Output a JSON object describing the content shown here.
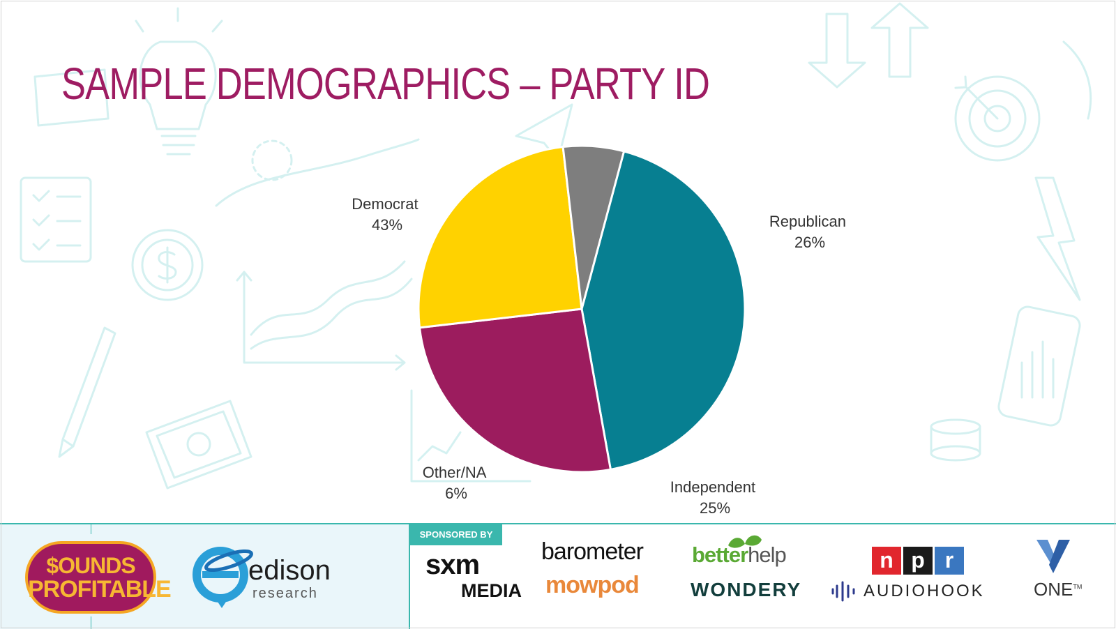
{
  "title": "SAMPLE DEMOGRAPHICS – PARTY ID",
  "chart_data": {
    "type": "pie",
    "slices": [
      {
        "label": "Democrat",
        "value_label": "43%",
        "value": 43,
        "color": "#077f91"
      },
      {
        "label": "Republican",
        "value_label": "26%",
        "value": 26,
        "color": "#9c1c5e"
      },
      {
        "label": "Independent",
        "value_label": "25%",
        "value": 25,
        "color": "#ffd200"
      },
      {
        "label": "Other/NA",
        "value_label": "6%",
        "value": 6,
        "color": "#7e7e7e"
      }
    ]
  },
  "footer": {
    "sounds_profitable": {
      "line1": "$OUNDS",
      "line2": "PROFITABLE"
    },
    "edison": {
      "name": "edison",
      "sub": "research"
    },
    "sponsored_by": "SPONSORED BY",
    "sponsors": {
      "sxm": "sxm",
      "sxm_media": "MEDIA",
      "barometer": "barometer",
      "mowpod": "mowpod",
      "betterhelp_a": "better",
      "betterhelp_b": "help",
      "wondery": "WONDERY",
      "npr_n": "n",
      "npr_p": "p",
      "npr_r": "r",
      "audiohook": "AUDIOHOOK",
      "one": "ONE",
      "one_mark": "TM"
    },
    "colors": {
      "accent": "#3ab7ad",
      "title": "#9e1c62"
    }
  }
}
